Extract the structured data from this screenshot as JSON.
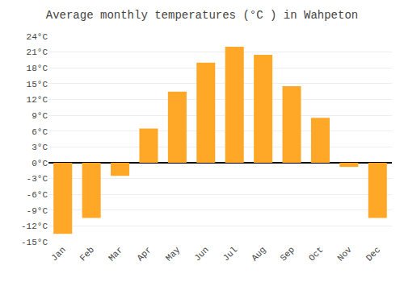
{
  "chart_data": {
    "type": "bar",
    "title": "Average monthly temperatures (°C ) in Wahpeton",
    "categories": [
      "Jan",
      "Feb",
      "Mar",
      "Apr",
      "May",
      "Jun",
      "Jul",
      "Aug",
      "Sep",
      "Oct",
      "Nov",
      "Dec"
    ],
    "values": [
      -13.5,
      -10.5,
      -2.5,
      6.5,
      13.5,
      19.0,
      22.0,
      20.5,
      14.5,
      8.5,
      -0.8,
      -10.5
    ],
    "color": "#FFA726",
    "ylim": [
      -15,
      24
    ],
    "yticks": [
      {
        "value": -15,
        "label": "-15°C"
      },
      {
        "value": -12,
        "label": "-12°C"
      },
      {
        "value": -9,
        "label": "-9°C"
      },
      {
        "value": -6,
        "label": "-6°C"
      },
      {
        "value": -3,
        "label": "-3°C"
      },
      {
        "value": 0,
        "label": "0°C"
      },
      {
        "value": 3,
        "label": "3°C"
      },
      {
        "value": 6,
        "label": "6°C"
      },
      {
        "value": 9,
        "label": "9°C"
      },
      {
        "value": 12,
        "label": "12°C"
      },
      {
        "value": 15,
        "label": "15°C"
      },
      {
        "value": 18,
        "label": "18°C"
      },
      {
        "value": 21,
        "label": "21°C"
      },
      {
        "value": 24,
        "label": "24°C"
      }
    ],
    "grid": true
  }
}
